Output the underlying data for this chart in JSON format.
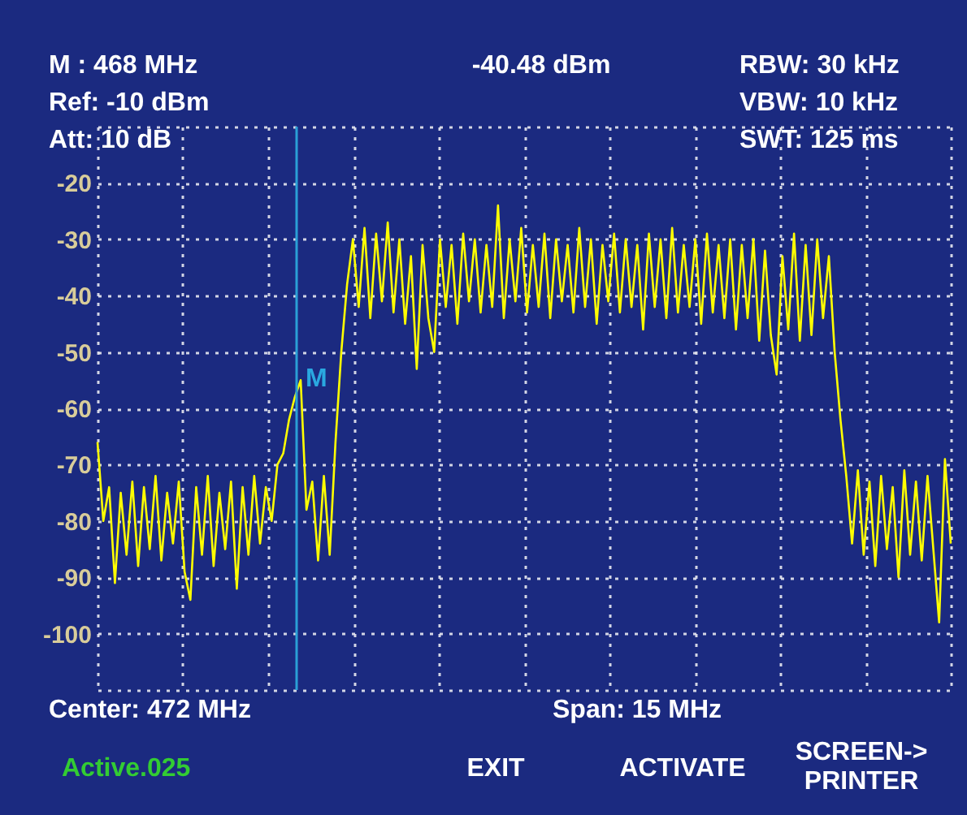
{
  "chart_data": {
    "type": "line",
    "categories": [
      null,
      null,
      null,
      null,
      null,
      null,
      null,
      null,
      null,
      null,
      null,
      null,
      null,
      null,
      null,
      null,
      null,
      null,
      null,
      null,
      null,
      null,
      null,
      null,
      null,
      null,
      null,
      null,
      null,
      null,
      null,
      null,
      null,
      null,
      null,
      null,
      null,
      null,
      null,
      null,
      null,
      null,
      null,
      null,
      null,
      null,
      null,
      null,
      null,
      null,
      null,
      null,
      null,
      null,
      null,
      null,
      null,
      null,
      null,
      null,
      null,
      null,
      null,
      null,
      null,
      null,
      null,
      null,
      null,
      null,
      null,
      null,
      null,
      null,
      null,
      null,
      null,
      null,
      null,
      null,
      null,
      null,
      null,
      null,
      null,
      null,
      null,
      null,
      null,
      null,
      null,
      null,
      null,
      null,
      null,
      null,
      null,
      null,
      null,
      null,
      null,
      null,
      null,
      null,
      null,
      null,
      null,
      null,
      null,
      null,
      null,
      null,
      null,
      null,
      null,
      null,
      null,
      null,
      null,
      null,
      null,
      null,
      null,
      null,
      null,
      null,
      null,
      null,
      null,
      null,
      null,
      null,
      null,
      null,
      null,
      null,
      null,
      null,
      null,
      null,
      null,
      null,
      null,
      null,
      null,
      null,
      null,
      null
    ],
    "series": [
      {
        "color": "#ffff00",
        "values": [
          -66,
          -80,
          -74,
          -91,
          -75,
          -86,
          -73,
          -88,
          -74,
          -85,
          -72,
          -87,
          -75,
          -84,
          -73,
          -89,
          -94,
          -74,
          -86,
          -72,
          -88,
          -75,
          -85,
          -73,
          -92,
          -74,
          -86,
          -72,
          -84,
          -74,
          -80,
          -70,
          -68,
          -62,
          -58,
          -55,
          -78,
          -73,
          -87,
          -72,
          -86,
          -66,
          -50,
          -38,
          -30,
          -42,
          -28,
          -44,
          -29,
          -41,
          -27,
          -43,
          -30,
          -45,
          -33,
          -53,
          -31,
          -44,
          -50,
          -30,
          -42,
          -31,
          -45,
          -29,
          -41,
          -30,
          -43,
          -31,
          -42,
          -24,
          -44,
          -30,
          -41,
          -28,
          -43,
          -31,
          -42,
          -29,
          -44,
          -30,
          -41,
          -31,
          -43,
          -28,
          -42,
          -30,
          -45,
          -31,
          -41,
          -29,
          -43,
          -30,
          -42,
          -31,
          -46,
          -29,
          -42,
          -30,
          -44,
          -28,
          -43,
          -31,
          -42,
          -30,
          -45,
          -29,
          -43,
          -31,
          -44,
          -30,
          -46,
          -31,
          -44,
          -30,
          -48,
          -32,
          -47,
          -54,
          -33,
          -46,
          -29,
          -48,
          -31,
          -47,
          -30,
          -44,
          -33,
          -50,
          -62,
          -72,
          -84,
          -71,
          -86,
          -73,
          -88,
          -72,
          -85,
          -74,
          -90,
          -71,
          -86,
          -73,
          -87,
          -72,
          -85,
          -98,
          -69,
          -84
        ]
      }
    ],
    "ylim": [
      -110,
      -10
    ],
    "yticks": [
      {
        "value": -10,
        "label": null
      },
      -20,
      -30,
      -40,
      -50,
      -60,
      -70,
      -80,
      -90,
      -100,
      {
        "value": -110,
        "label": null
      }
    ],
    "tick_labels": "y",
    "grid": true,
    "annotations": [
      "M : 468 MHz",
      "-40.48 dBm",
      "RBW: 30 kHz",
      "VBW: 10 kHz",
      "SWT: 125 ms",
      "Ref: -10 dBm",
      "Att: 10 dB",
      "Center: 472 MHz",
      "Span: 15 MHz",
      "Active.025",
      "EXIT",
      "ACTIVATE",
      "SCREEN->\nPRINTER",
      "M"
    ]
  }
}
